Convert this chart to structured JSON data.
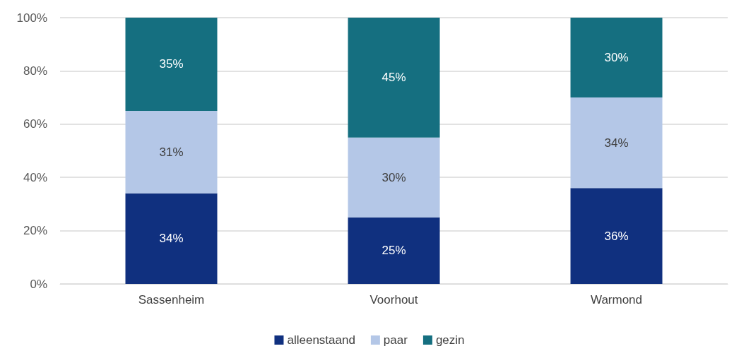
{
  "chart_data": {
    "type": "bar",
    "stacked": true,
    "categories": [
      "Sassenheim",
      "Voorhout",
      "Warmond"
    ],
    "series": [
      {
        "name": "alleenstaand",
        "color": "#10307f",
        "values": [
          34,
          25,
          36
        ],
        "value_labels": [
          "34%",
          "25%",
          "36%"
        ]
      },
      {
        "name": "paar",
        "color": "#b4c7e7",
        "values": [
          31,
          30,
          34
        ],
        "value_labels": [
          "31%",
          "30%",
          "34%"
        ]
      },
      {
        "name": "gezin",
        "color": "#156f80",
        "values": [
          35,
          45,
          30
        ],
        "value_labels": [
          "35%",
          "45%",
          "30%"
        ]
      }
    ],
    "ylim": [
      0,
      100
    ],
    "yticks": [
      {
        "value": 0,
        "label": "0%"
      },
      {
        "value": 20,
        "label": "20%"
      },
      {
        "value": 40,
        "label": "40%"
      },
      {
        "value": 60,
        "label": "60%"
      },
      {
        "value": 80,
        "label": "80%"
      },
      {
        "value": 100,
        "label": "100%"
      }
    ],
    "grid": "y",
    "legend": "bottom"
  }
}
